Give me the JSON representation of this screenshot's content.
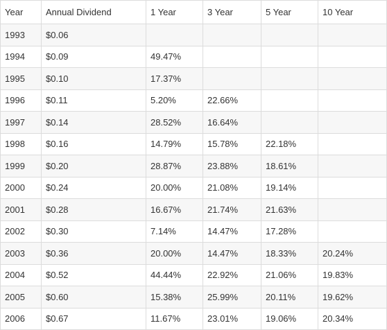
{
  "table": {
    "headers": [
      "Year",
      "Annual Dividend",
      "1 Year",
      "3 Year",
      "5 Year",
      "10 Year"
    ],
    "rows": [
      [
        "1993",
        "$0.06",
        "",
        "",
        "",
        ""
      ],
      [
        "1994",
        "$0.09",
        "49.47%",
        "",
        "",
        ""
      ],
      [
        "1995",
        "$0.10",
        "17.37%",
        "",
        "",
        ""
      ],
      [
        "1996",
        "$0.11",
        "5.20%",
        "22.66%",
        "",
        ""
      ],
      [
        "1997",
        "$0.14",
        "28.52%",
        "16.64%",
        "",
        ""
      ],
      [
        "1998",
        "$0.16",
        "14.79%",
        "15.78%",
        "22.18%",
        ""
      ],
      [
        "1999",
        "$0.20",
        "28.87%",
        "23.88%",
        "18.61%",
        ""
      ],
      [
        "2000",
        "$0.24",
        "20.00%",
        "21.08%",
        "19.14%",
        ""
      ],
      [
        "2001",
        "$0.28",
        "16.67%",
        "21.74%",
        "21.63%",
        ""
      ],
      [
        "2002",
        "$0.30",
        "7.14%",
        "14.47%",
        "17.28%",
        ""
      ],
      [
        "2003",
        "$0.36",
        "20.00%",
        "14.47%",
        "18.33%",
        "20.24%"
      ],
      [
        "2004",
        "$0.52",
        "44.44%",
        "22.92%",
        "21.06%",
        "19.83%"
      ],
      [
        "2005",
        "$0.60",
        "15.38%",
        "25.99%",
        "20.11%",
        "19.62%"
      ],
      [
        "2006",
        "$0.67",
        "11.67%",
        "23.01%",
        "19.06%",
        "20.34%"
      ]
    ]
  }
}
